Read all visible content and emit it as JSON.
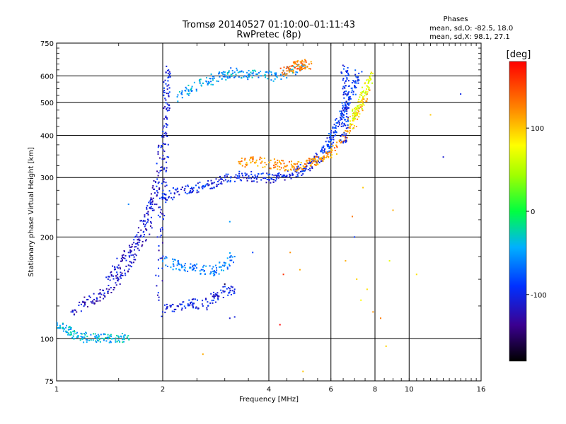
{
  "chart_data": {
    "type": "scatter",
    "title": "Tromsø 20140527 01:10:00–01:11:43",
    "subtitle": "RwPretec (8p)",
    "xlabel": "Frequency [MHz]",
    "ylabel": "Stationary phase Virtual Height [km]",
    "x_scale": "log",
    "y_scale": "log",
    "xlim": [
      1,
      16
    ],
    "ylim": [
      75,
      750
    ],
    "x_ticks": [
      1,
      2,
      4,
      6,
      8,
      10,
      16
    ],
    "x_tick_labels": [
      "1",
      "2",
      "4",
      "6",
      "8",
      "10",
      "16"
    ],
    "y_ticks": [
      75,
      100,
      200,
      300,
      400,
      500,
      600,
      750
    ],
    "y_tick_labels": [
      "75",
      "100",
      "200",
      "300",
      "400",
      "500",
      "600",
      "750"
    ],
    "grid": true,
    "colorbar": {
      "label": "[deg]",
      "min": -180,
      "max": 180,
      "ticks": [
        100,
        0,
        -100
      ],
      "tick_labels": [
        "100",
        "0",
        "-100"
      ]
    },
    "stats": {
      "header": "Phases",
      "line_o": "mean, sd,O: -82.5, 18.0",
      "line_x": "mean, sd,X:  98.1, 27.1"
    },
    "traces": [
      {
        "name": "trace-low-tail",
        "x": [
          1.0,
          1.05,
          1.1,
          1.15,
          1.2,
          1.3,
          1.4,
          1.5,
          1.6
        ],
        "y": [
          112,
          107,
          104,
          102,
          101,
          100,
          100,
          101,
          100
        ],
        "phase": -40
      },
      {
        "name": "trace-e-rise",
        "x": [
          1.1,
          1.2,
          1.3,
          1.4,
          1.5,
          1.6,
          1.7,
          1.8,
          1.9
        ],
        "y": [
          120,
          128,
          132,
          138,
          150,
          165,
          185,
          210,
          250
        ],
        "phase": -115
      },
      {
        "name": "trace-spread-upper",
        "x": [
          1.4,
          1.5,
          1.6,
          1.7,
          1.8,
          1.9,
          1.95,
          2.0
        ],
        "y": [
          150,
          165,
          180,
          200,
          235,
          270,
          310,
          400
        ],
        "phase": -110
      },
      {
        "name": "trace-vertical-2mhz",
        "x": [
          1.95,
          1.97,
          2.0,
          2.02,
          2.04,
          2.05,
          2.06,
          2.05
        ],
        "y": [
          130,
          200,
          260,
          320,
          400,
          480,
          560,
          640
        ],
        "phase": -105
      },
      {
        "name": "trace-f-low",
        "x": [
          2.0,
          2.2,
          2.4,
          2.6,
          2.8,
          3.0,
          3.3,
          3.6,
          3.9,
          4.2,
          4.5,
          4.8,
          5.1,
          5.4,
          5.7
        ],
        "y": [
          260,
          272,
          278,
          283,
          290,
          300,
          303,
          302,
          299,
          300,
          304,
          311,
          320,
          335,
          355
        ],
        "phase": -100
      },
      {
        "name": "trace-f-rise",
        "x": [
          5.7,
          5.9,
          6.0,
          6.2,
          6.4,
          6.6,
          6.8,
          7.0,
          7.2
        ],
        "y": [
          355,
          375,
          395,
          420,
          450,
          480,
          520,
          560,
          610
        ],
        "phase": -90
      },
      {
        "name": "trace-f-x",
        "x": [
          3.3,
          3.6,
          3.9,
          4.2,
          4.5,
          4.8,
          5.1,
          5.4,
          5.7,
          6.0,
          6.4,
          6.8,
          7.2,
          7.6
        ],
        "y": [
          330,
          335,
          332,
          328,
          325,
          323,
          328,
          335,
          340,
          355,
          380,
          420,
          470,
          530
        ],
        "phase": 120
      },
      {
        "name": "trace-f-x-high",
        "x": [
          6.8,
          7.0,
          7.2,
          7.4,
          7.6,
          7.8
        ],
        "y": [
          430,
          460,
          490,
          520,
          560,
          600
        ],
        "phase": 70
      },
      {
        "name": "trace-top",
        "x": [
          2.2,
          2.4,
          2.6,
          2.8,
          3.0,
          3.2,
          3.5,
          3.8,
          4.2,
          4.6,
          5.0
        ],
        "y": [
          520,
          545,
          570,
          590,
          605,
          615,
          605,
          600,
          598,
          620,
          640
        ],
        "phase": -50
      },
      {
        "name": "trace-top-x",
        "x": [
          4.4,
          4.6,
          4.8,
          5.0,
          5.2
        ],
        "y": [
          620,
          630,
          640,
          645,
          650
        ],
        "phase": 130
      },
      {
        "name": "trace-vertical-6-6",
        "x": [
          6.5,
          6.55,
          6.6,
          6.6,
          6.62,
          6.55
        ],
        "y": [
          380,
          430,
          480,
          530,
          580,
          640
        ],
        "phase": -95
      },
      {
        "name": "trace-cluster-mid",
        "x": [
          2.0,
          2.2,
          2.4,
          2.6,
          2.8,
          3.0,
          3.2
        ],
        "y": [
          170,
          165,
          162,
          160,
          158,
          165,
          175
        ],
        "phase": -60
      },
      {
        "name": "trace-cluster-low",
        "x": [
          2.0,
          2.2,
          2.4,
          2.6,
          2.8,
          3.0,
          3.2
        ],
        "y": [
          120,
          125,
          128,
          125,
          132,
          138,
          140
        ],
        "phase": -100
      }
    ],
    "scattered_points": [
      {
        "x": 3.1,
        "y": 115,
        "phase": -110
      },
      {
        "x": 3.2,
        "y": 116,
        "phase": -105
      },
      {
        "x": 3.0,
        "y": 145,
        "phase": -160
      },
      {
        "x": 3.6,
        "y": 180,
        "phase": -85
      },
      {
        "x": 3.1,
        "y": 222,
        "phase": -50
      },
      {
        "x": 4.6,
        "y": 180,
        "phase": 120
      },
      {
        "x": 4.4,
        "y": 155,
        "phase": 160
      },
      {
        "x": 4.9,
        "y": 160,
        "phase": 110
      },
      {
        "x": 6.9,
        "y": 230,
        "phase": 130
      },
      {
        "x": 6.6,
        "y": 170,
        "phase": 110
      },
      {
        "x": 7.1,
        "y": 150,
        "phase": 95
      },
      {
        "x": 7.3,
        "y": 130,
        "phase": 80
      },
      {
        "x": 7.6,
        "y": 140,
        "phase": 90
      },
      {
        "x": 8.8,
        "y": 170,
        "phase": 70
      },
      {
        "x": 9.0,
        "y": 240,
        "phase": 110
      },
      {
        "x": 8.6,
        "y": 95,
        "phase": 95
      },
      {
        "x": 5.0,
        "y": 80,
        "phase": 100
      },
      {
        "x": 4.3,
        "y": 110,
        "phase": 180
      },
      {
        "x": 12.5,
        "y": 345,
        "phase": -110
      },
      {
        "x": 14.0,
        "y": 530,
        "phase": -100
      },
      {
        "x": 11.5,
        "y": 460,
        "phase": 100
      },
      {
        "x": 10.5,
        "y": 155,
        "phase": 90
      },
      {
        "x": 7.0,
        "y": 200,
        "phase": -90
      },
      {
        "x": 7.9,
        "y": 120,
        "phase": 120
      },
      {
        "x": 8.3,
        "y": 115,
        "phase": 130
      },
      {
        "x": 7.4,
        "y": 280,
        "phase": 100
      },
      {
        "x": 2.6,
        "y": 90,
        "phase": 110
      },
      {
        "x": 1.6,
        "y": 250,
        "phase": -60
      }
    ]
  }
}
